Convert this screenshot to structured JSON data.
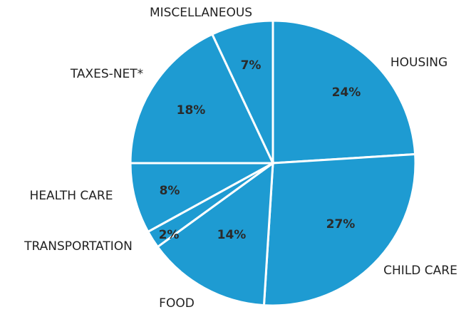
{
  "chart_data": {
    "type": "pie",
    "categories": [
      "HOUSING",
      "CHILD CARE",
      "FOOD",
      "TRANSPORTATION",
      "HEALTH CARE",
      "TAXES-NET*",
      "MISCELLANEOUS"
    ],
    "values": [
      24,
      27,
      14,
      2,
      8,
      18,
      7
    ],
    "value_labels": [
      "24%",
      "27%",
      "14%",
      "2%",
      "8%",
      "18%",
      "7%"
    ],
    "color": "#1e9bd2"
  }
}
